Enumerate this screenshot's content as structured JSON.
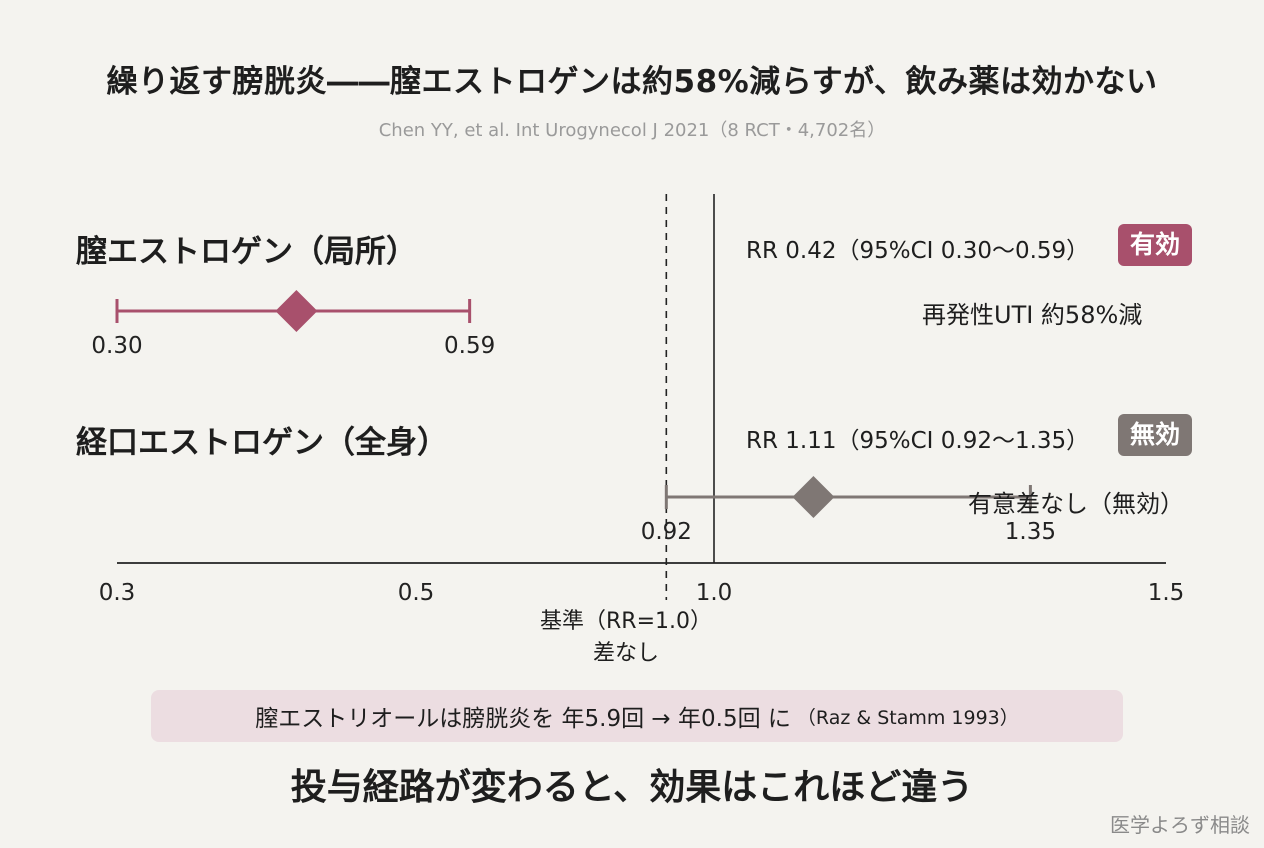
{
  "header": {
    "title": "繰り返す膀胱炎――膣エストロゲンは約58%減らすが、飲み薬は効かない",
    "subtitle": "Chen YY, et al. Int Urogynecol J 2021（8 RCT・4,702名）"
  },
  "rows": [
    {
      "label": "膣エストロゲン（局所）",
      "stat": "RR 0.42（95%CI 0.30〜0.59）",
      "badge": "有効",
      "note": "再発性UTI  約58%減"
    },
    {
      "label": "経口エストロゲン（全身）",
      "stat": "RR 1.11（95%CI 0.92〜1.35）",
      "badge": "無効",
      "note": "有意差なし（無効）"
    }
  ],
  "reference": {
    "line1": "基準（RR=1.0）",
    "line2": "差なし"
  },
  "highlight": {
    "text": "膣エストリオールは膀胱炎を 年5.9回 → 年0.5回 に",
    "cite": "（Raz & Stamm 1993）"
  },
  "conclusion": "投与経路が変わると、効果はこれほど違う",
  "watermark": "医学よろず相談",
  "colors": {
    "effective": "#a8506c",
    "ineffective": "#7f7774",
    "axis": "#222222"
  },
  "chart_data": {
    "type": "forest",
    "x_axis": {
      "range": [
        0.3,
        1.5
      ],
      "ticks": [
        0.3,
        0.5,
        1.0,
        1.5
      ],
      "tick_labels": [
        "0.3",
        "0.5",
        "1.0",
        "1.5"
      ],
      "reference_value": 1.0
    },
    "series": [
      {
        "name": "膣エストロゲン（局所）",
        "rr": 0.42,
        "ci_low": 0.3,
        "ci_high": 0.59,
        "ci_low_label": "0.30",
        "ci_high_label": "0.59",
        "color": "#a8506c"
      },
      {
        "name": "経口エストロゲン（全身）",
        "rr": 1.11,
        "ci_low": 0.92,
        "ci_high": 1.35,
        "ci_low_label": "0.92",
        "ci_high_label": "1.35",
        "color": "#7f7774"
      }
    ]
  }
}
